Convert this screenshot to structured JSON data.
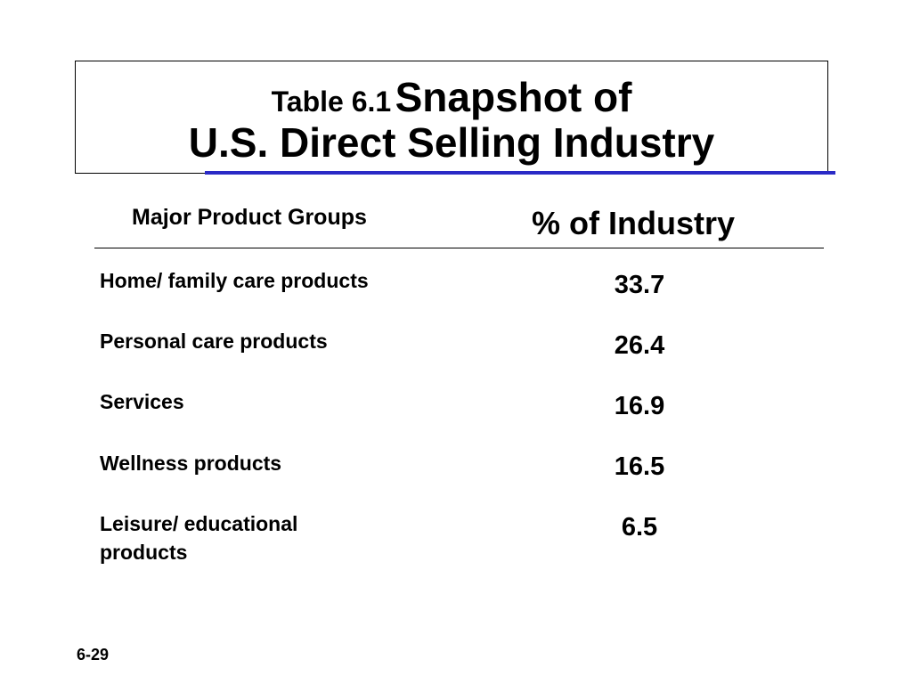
{
  "title": {
    "prefix": "Table 6.1",
    "main_line1": "Snapshot of",
    "main_line2": "U.S. Direct Selling Industry"
  },
  "table": {
    "headers": {
      "category": "Major Product Groups",
      "value": "% of Industry"
    },
    "rows": [
      {
        "label": "Home/ family care products",
        "value": "33.7"
      },
      {
        "label": "Personal care products",
        "value": "26.4"
      },
      {
        "label": "Services",
        "value": "16.9"
      },
      {
        "label": "Wellness products",
        "value": "16.5"
      },
      {
        "label": "Leisure/ educational products",
        "value": "6.5"
      }
    ]
  },
  "footer": {
    "page_number": "6-29"
  },
  "colors": {
    "accent_rule": "#2a2ac6",
    "text": "#000000"
  }
}
